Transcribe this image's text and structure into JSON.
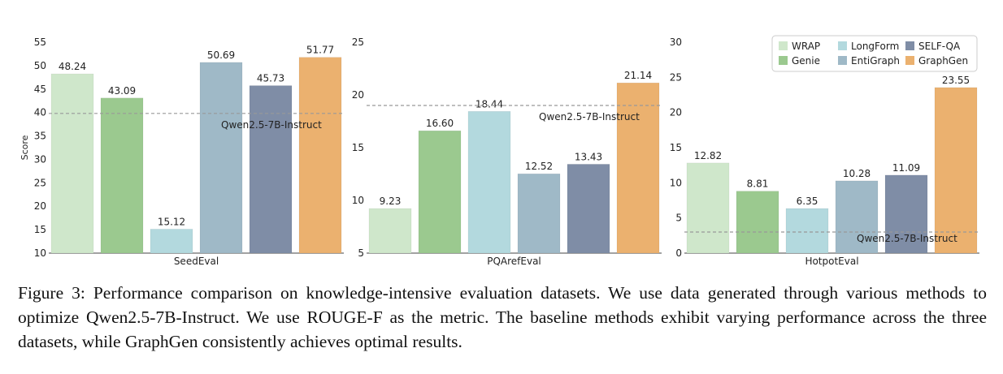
{
  "chart_data": [
    {
      "type": "bar",
      "xlabel": "SeedEval",
      "ylabel": "Score",
      "categories": [
        "WRAP",
        "Genie",
        "LongForm",
        "EntiGraph",
        "SELF-QA",
        "GraphGen"
      ],
      "values": [
        48.24,
        43.09,
        15.12,
        50.69,
        45.73,
        51.77
      ],
      "value_labels": [
        "48.24",
        "43.09",
        "15.12",
        "50.69",
        "45.73",
        "51.77"
      ],
      "ylim": [
        10,
        55
      ],
      "yticks": [
        "10",
        "15",
        "20",
        "25",
        "30",
        "35",
        "40",
        "45",
        "50",
        "55"
      ],
      "baseline": {
        "label": "Qwen2.5-7B-Instruct",
        "value": 39.8
      }
    },
    {
      "type": "bar",
      "xlabel": "PQArefEval",
      "ylabel": "",
      "categories": [
        "WRAP",
        "Genie",
        "LongForm",
        "EntiGraph",
        "SELF-QA",
        "GraphGen"
      ],
      "values": [
        9.23,
        16.6,
        18.44,
        12.52,
        13.43,
        21.14
      ],
      "value_labels": [
        "9.23",
        "16.60",
        "18.44",
        "12.52",
        "13.43",
        "21.14"
      ],
      "ylim": [
        5,
        25
      ],
      "yticks": [
        "5",
        "10",
        "15",
        "20",
        "25"
      ],
      "baseline": {
        "label": "Qwen2.5-7B-Instruct",
        "value": 19.0
      }
    },
    {
      "type": "bar",
      "xlabel": "HotpotEval",
      "ylabel": "",
      "categories": [
        "WRAP",
        "Genie",
        "LongForm",
        "EntiGraph",
        "SELF-QA",
        "GraphGen"
      ],
      "values": [
        12.82,
        8.81,
        6.35,
        10.28,
        11.09,
        23.55
      ],
      "value_labels": [
        "12.82",
        "8.81",
        "6.35",
        "10.28",
        "11.09",
        "23.55"
      ],
      "ylim": [
        0,
        30
      ],
      "yticks": [
        "0",
        "5",
        "10",
        "15",
        "20",
        "25",
        "30"
      ],
      "baseline": {
        "label": "Qwen2.5-7B-Instruct",
        "value": 3.0
      }
    }
  ],
  "legend": {
    "entries": [
      {
        "name": "WRAP",
        "color": "#cfe7cb"
      },
      {
        "name": "LongForm",
        "color": "#b3d9de"
      },
      {
        "name": "SELF-QA",
        "color": "#7f8da6"
      },
      {
        "name": "Genie",
        "color": "#9bc98f"
      },
      {
        "name": "EntiGraph",
        "color": "#9fb9c7"
      },
      {
        "name": "GraphGen",
        "color": "#ebb16f"
      }
    ]
  },
  "colors": {
    "WRAP": "#cfe7cb",
    "Genie": "#9bc98f",
    "LongForm": "#b3d9de",
    "EntiGraph": "#9fb9c7",
    "SELF-QA": "#7f8da6",
    "GraphGen": "#ebb16f",
    "baseline": "#999999"
  },
  "caption": "Figure 3: Performance comparison on knowledge-intensive evaluation datasets. We use data generated through various methods to optimize Qwen2.5-7B-Instruct. We use ROUGE-F as the metric. The baseline methods exhibit varying performance across the three datasets, while GraphGen consistently achieves optimal results."
}
